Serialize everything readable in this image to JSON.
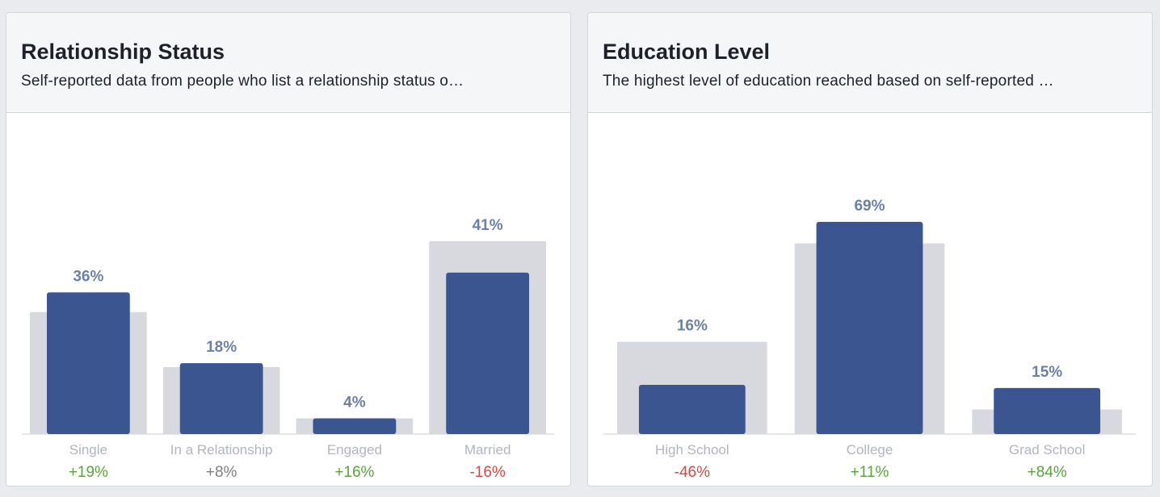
{
  "colors": {
    "bar": "#3b5591",
    "comparison_bar": "#d8d9de",
    "positive": "#59a53b",
    "negative": "#d54a43",
    "neutral": "#7f7f7f"
  },
  "relationship": {
    "title": "Relationship Status",
    "subtitle": "Self-reported data from people who list a relationship status o…"
  },
  "education": {
    "title": "Education Level",
    "subtitle": "The highest level of education reached based on self-reported …"
  },
  "chart_data": [
    {
      "type": "bar",
      "categories": [
        "Single",
        "In a Relationship",
        "Engaged",
        "Married"
      ],
      "series": [
        {
          "values": [
            36,
            18,
            4,
            41
          ]
        },
        {
          "values": [
            31,
            17,
            4,
            49
          ]
        }
      ],
      "data_labels": [
        "36%",
        "18%",
        "4%",
        "41%"
      ],
      "changes": [
        "+19%",
        "+8%",
        "+16%",
        "-16%"
      ],
      "change_sign": [
        "positive",
        "neutral",
        "positive",
        "negative"
      ],
      "ylim": [
        0,
        50
      ]
    },
    {
      "type": "bar",
      "categories": [
        "High School",
        "College",
        "Grad School"
      ],
      "series": [
        {
          "values": [
            16,
            69,
            15
          ]
        },
        {
          "values": [
            30,
            62,
            8
          ]
        }
      ],
      "data_labels": [
        "16%",
        "69%",
        "15%"
      ],
      "changes": [
        "-46%",
        "+11%",
        "+84%"
      ],
      "change_sign": [
        "negative",
        "positive",
        "positive"
      ],
      "ylim": [
        0,
        85
      ]
    }
  ]
}
